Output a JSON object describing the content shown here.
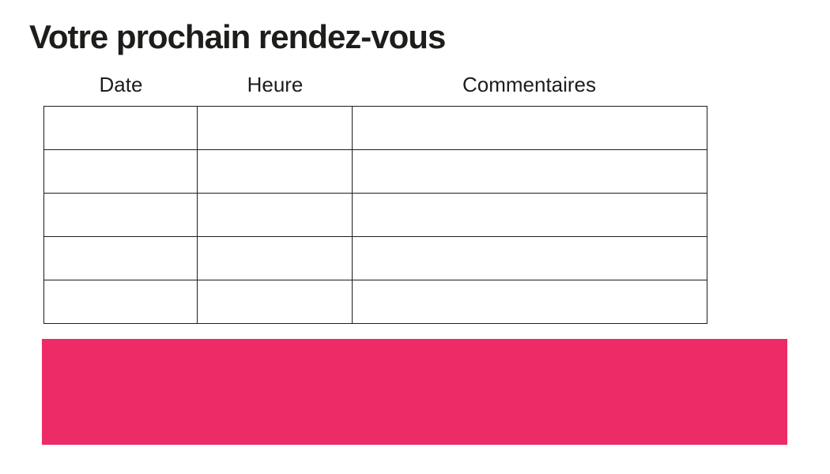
{
  "document": {
    "title": "Votre prochain rendez-vous"
  },
  "appointment_table": {
    "headers": [
      "Date",
      "Heure",
      "Commentaires"
    ],
    "rows": [
      [
        "",
        "",
        ""
      ],
      [
        "",
        "",
        ""
      ],
      [
        "",
        "",
        ""
      ],
      [
        "",
        "",
        ""
      ],
      [
        "",
        "",
        ""
      ]
    ]
  },
  "colors": {
    "accent_pink": "#ED2B67",
    "text": "#1D1D1B",
    "table_border": "#1D1D1B"
  }
}
